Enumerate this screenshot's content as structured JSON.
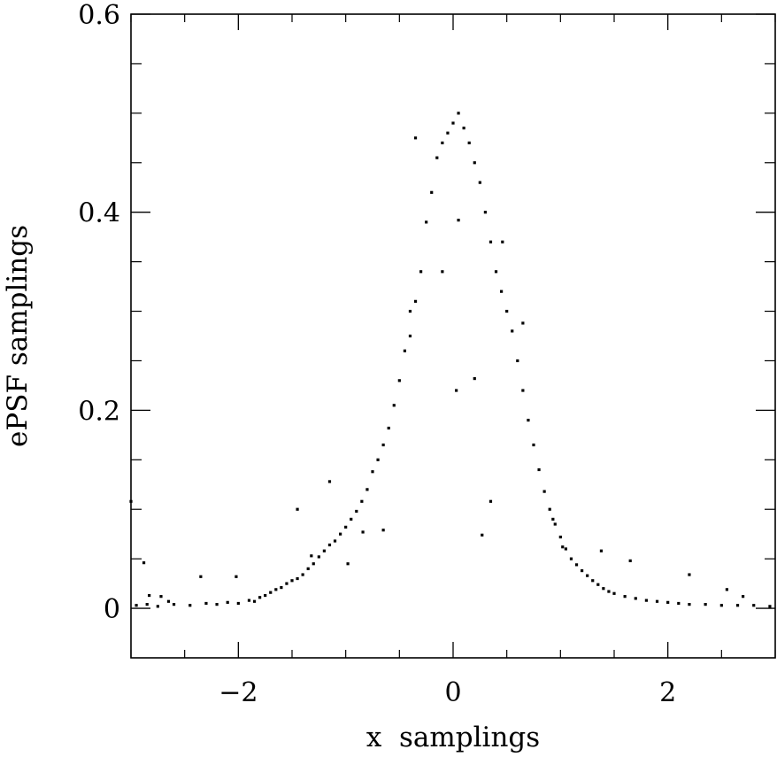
{
  "chart_data": {
    "type": "scatter",
    "title": "",
    "xlabel": "x  samplings",
    "ylabel": "ePSF samplings",
    "xlim": [
      -3,
      3
    ],
    "ylim": [
      -0.05,
      0.6
    ],
    "grid": false,
    "legend": "none",
    "x_ticks": [
      -2,
      0,
      2
    ],
    "x_tick_labels": [
      "−2",
      "0",
      "2"
    ],
    "y_ticks": [
      0,
      0.2,
      0.4,
      0.6
    ],
    "y_tick_labels": [
      "0",
      "0.2",
      "0.4",
      "0.6"
    ],
    "x_minor_step": 0.5,
    "y_minor_step": 0.05,
    "marker_color": "#000000",
    "series": [
      {
        "points": [
          [
            -3.0,
            0.108
          ],
          [
            -2.88,
            0.046
          ],
          [
            -2.83,
            0.013
          ],
          [
            -2.72,
            0.012
          ],
          [
            -2.65,
            0.007
          ],
          [
            -2.35,
            0.032
          ],
          [
            -2.02,
            0.032
          ],
          [
            -1.45,
            0.1
          ],
          [
            -1.32,
            0.053
          ],
          [
            -1.15,
            0.128
          ],
          [
            -0.98,
            0.045
          ],
          [
            -0.84,
            0.077
          ],
          [
            -0.65,
            0.079
          ],
          [
            -0.4,
            0.3
          ],
          [
            -0.35,
            0.475
          ],
          [
            -0.1,
            0.34
          ],
          [
            0.03,
            0.22
          ],
          [
            0.05,
            0.392
          ],
          [
            0.2,
            0.232
          ],
          [
            0.27,
            0.074
          ],
          [
            0.35,
            0.108
          ],
          [
            0.46,
            0.37
          ],
          [
            0.65,
            0.288
          ],
          [
            0.93,
            0.09
          ],
          [
            1.02,
            0.062
          ],
          [
            1.38,
            0.058
          ],
          [
            1.65,
            0.048
          ],
          [
            2.2,
            0.034
          ],
          [
            2.55,
            0.019
          ],
          [
            2.7,
            0.012
          ],
          [
            -2.95,
            0.003
          ],
          [
            -2.85,
            0.004
          ],
          [
            -2.75,
            0.002
          ],
          [
            -2.6,
            0.004
          ],
          [
            -2.45,
            0.003
          ],
          [
            -2.3,
            0.005
          ],
          [
            -2.2,
            0.004
          ],
          [
            -2.1,
            0.006
          ],
          [
            -2.0,
            0.005
          ],
          [
            -1.9,
            0.008
          ],
          [
            -1.85,
            0.007
          ],
          [
            -1.8,
            0.011
          ],
          [
            -1.75,
            0.013
          ],
          [
            -1.7,
            0.016
          ],
          [
            -1.65,
            0.019
          ],
          [
            -1.6,
            0.021
          ],
          [
            -1.55,
            0.025
          ],
          [
            -1.5,
            0.028
          ],
          [
            -1.45,
            0.03
          ],
          [
            -1.4,
            0.034
          ],
          [
            -1.35,
            0.04
          ],
          [
            -1.3,
            0.045
          ],
          [
            -1.25,
            0.052
          ],
          [
            -1.2,
            0.058
          ],
          [
            -1.15,
            0.064
          ],
          [
            -1.1,
            0.068
          ],
          [
            -1.05,
            0.075
          ],
          [
            -1.0,
            0.082
          ],
          [
            -0.95,
            0.09
          ],
          [
            -0.9,
            0.098
          ],
          [
            -0.85,
            0.108
          ],
          [
            -0.8,
            0.12
          ],
          [
            -0.75,
            0.138
          ],
          [
            -0.7,
            0.15
          ],
          [
            -0.65,
            0.165
          ],
          [
            -0.6,
            0.182
          ],
          [
            -0.55,
            0.205
          ],
          [
            -0.5,
            0.23
          ],
          [
            -0.45,
            0.26
          ],
          [
            -0.4,
            0.275
          ],
          [
            -0.35,
            0.31
          ],
          [
            -0.3,
            0.34
          ],
          [
            -0.25,
            0.39
          ],
          [
            -0.2,
            0.42
          ],
          [
            -0.15,
            0.455
          ],
          [
            -0.1,
            0.47
          ],
          [
            -0.05,
            0.48
          ],
          [
            0.0,
            0.49
          ],
          [
            0.05,
            0.5
          ],
          [
            0.1,
            0.485
          ],
          [
            0.15,
            0.47
          ],
          [
            0.2,
            0.45
          ],
          [
            0.25,
            0.43
          ],
          [
            0.3,
            0.4
          ],
          [
            0.35,
            0.37
          ],
          [
            0.4,
            0.34
          ],
          [
            0.45,
            0.32
          ],
          [
            0.5,
            0.3
          ],
          [
            0.55,
            0.28
          ],
          [
            0.6,
            0.25
          ],
          [
            0.65,
            0.22
          ],
          [
            0.7,
            0.19
          ],
          [
            0.75,
            0.165
          ],
          [
            0.8,
            0.14
          ],
          [
            0.85,
            0.118
          ],
          [
            0.9,
            0.1
          ],
          [
            0.95,
            0.085
          ],
          [
            1.0,
            0.072
          ],
          [
            1.05,
            0.06
          ],
          [
            1.1,
            0.05
          ],
          [
            1.15,
            0.044
          ],
          [
            1.2,
            0.038
          ],
          [
            1.25,
            0.033
          ],
          [
            1.3,
            0.028
          ],
          [
            1.35,
            0.024
          ],
          [
            1.4,
            0.02
          ],
          [
            1.45,
            0.017
          ],
          [
            1.5,
            0.015
          ],
          [
            1.6,
            0.012
          ],
          [
            1.7,
            0.01
          ],
          [
            1.8,
            0.008
          ],
          [
            1.9,
            0.007
          ],
          [
            2.0,
            0.006
          ],
          [
            2.1,
            0.005
          ],
          [
            2.2,
            0.004
          ],
          [
            2.35,
            0.004
          ],
          [
            2.5,
            0.003
          ],
          [
            2.65,
            0.003
          ],
          [
            2.8,
            0.003
          ],
          [
            2.95,
            0.002
          ]
        ]
      }
    ]
  }
}
